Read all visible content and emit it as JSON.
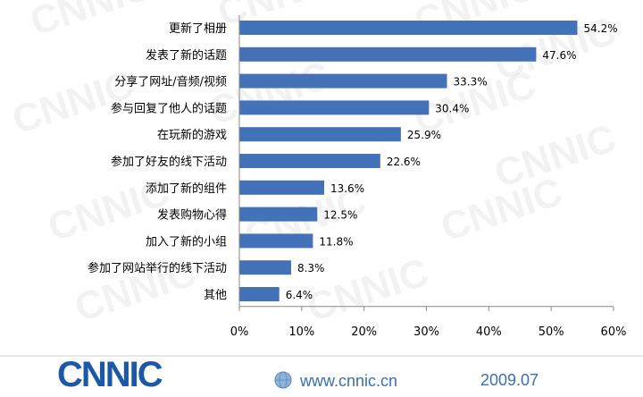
{
  "chart_data": {
    "type": "bar",
    "orientation": "horizontal",
    "categories": [
      "更新了相册",
      "发表了新的话题",
      "分享了网址/音频/视频",
      "参与回复了他人的话题",
      "在玩新的游戏",
      "参加了好友的线下活动",
      "添加了新的组件",
      "发表购物心得",
      "加入了新的小组",
      "参加了网站举行的线下活动",
      "其他"
    ],
    "values": [
      54.2,
      47.6,
      33.3,
      30.4,
      25.9,
      22.6,
      13.6,
      12.5,
      11.8,
      8.3,
      6.4
    ],
    "value_labels": [
      "54.2%",
      "47.6%",
      "33.3%",
      "30.4%",
      "25.9%",
      "22.6%",
      "13.6%",
      "12.5%",
      "11.8%",
      "8.3%",
      "6.4%"
    ],
    "xlim": [
      0,
      60
    ],
    "xticks": [
      "0%",
      "10%",
      "20%",
      "30%",
      "40%",
      "50%",
      "60%"
    ],
    "bar_color": "#4472b8",
    "grid": false,
    "title": "",
    "xlabel": "",
    "ylabel": ""
  },
  "footer": {
    "logo": "CNNIC",
    "url": "www.cnnic.cn",
    "date": "2009.07"
  },
  "watermark": "CNNIC",
  "colors": {
    "brand": "#1c58a8",
    "footer_text": "#3a6fb3"
  }
}
